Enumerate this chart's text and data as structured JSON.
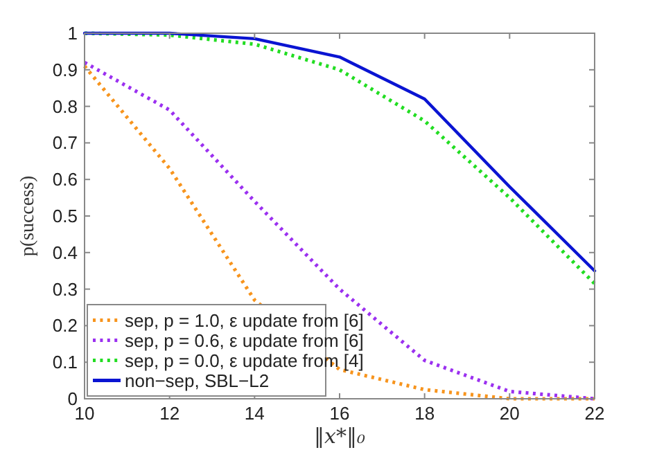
{
  "chart_data": {
    "type": "line",
    "xlabel": "‖x*‖₀",
    "ylabel": "p(success)",
    "x": [
      10,
      12,
      14,
      16,
      18,
      20,
      22
    ],
    "series": [
      {
        "name": "sep, p = 1.0, ε update from [6]",
        "color": "#f7941d",
        "line_style": "dotted",
        "values": [
          0.91,
          0.63,
          0.27,
          0.08,
          0.025,
          0.0,
          0.0
        ]
      },
      {
        "name": "sep, p = 0.6, ε update from [6]",
        "color": "#9b30f0",
        "line_style": "dotted",
        "values": [
          0.92,
          0.79,
          0.54,
          0.3,
          0.105,
          0.02,
          0.0
        ]
      },
      {
        "name": "sep, p = 0.0, ε update from [4]",
        "color": "#22dd22",
        "line_style": "dotted",
        "values": [
          1.0,
          0.995,
          0.97,
          0.9,
          0.76,
          0.55,
          0.315
        ]
      },
      {
        "name": "non−sep, SBL−L2",
        "color": "#0a14d2",
        "line_style": "solid",
        "values": [
          1.0,
          1.0,
          0.985,
          0.935,
          0.82,
          0.58,
          0.35
        ]
      }
    ],
    "xlim": [
      10,
      22
    ],
    "xticks": [
      10,
      12,
      14,
      16,
      18,
      20,
      22
    ],
    "ylim": [
      0,
      1
    ],
    "yticks": [
      0,
      0.1,
      0.2,
      0.3,
      0.4,
      0.5,
      0.6,
      0.7,
      0.8,
      0.9,
      1
    ],
    "grid": false,
    "legend": "bottom left",
    "marker": "none"
  }
}
